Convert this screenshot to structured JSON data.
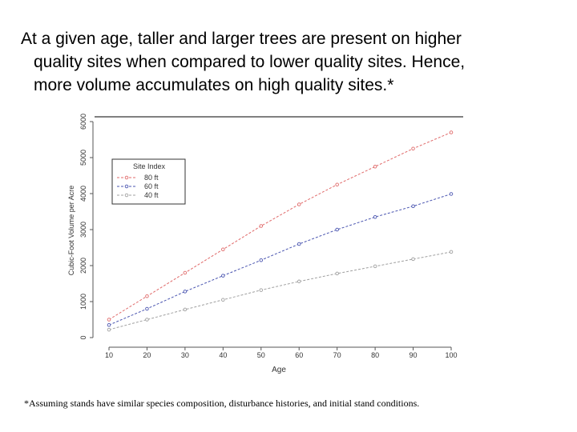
{
  "heading": {
    "line1": "At a given age, taller and larger trees are present on higher",
    "line2": "quality sites when compared to lower quality sites.  Hence,",
    "line3": "more volume accumulates on high quality sites.*"
  },
  "footnote": "*Assuming stands have similar species composition, disturbance histories, and initial stand conditions.",
  "chart_data": {
    "type": "line",
    "title": "",
    "xlabel": "Age",
    "ylabel": "Cubic-Foot Volume per Acre",
    "x": [
      10,
      20,
      30,
      40,
      50,
      60,
      70,
      80,
      90,
      100
    ],
    "xlim": [
      10,
      100
    ],
    "ylim": [
      0,
      6000
    ],
    "xticks": [
      10,
      20,
      30,
      40,
      50,
      60,
      70,
      80,
      90,
      100
    ],
    "yticks": [
      0,
      1000,
      2000,
      3000,
      4000,
      5000,
      6000
    ],
    "grid": false,
    "legend": {
      "title": "Site Index",
      "placement": "top-left"
    },
    "series": [
      {
        "name": "80 ft",
        "color": "#e06a6a",
        "values": [
          500,
          1150,
          1800,
          2450,
          3100,
          3700,
          4250,
          4750,
          5250,
          5700
        ]
      },
      {
        "name": "60 ft",
        "color": "#4a55b0",
        "values": [
          350,
          800,
          1280,
          1720,
          2150,
          2600,
          3000,
          3350,
          3650,
          3990
        ]
      },
      {
        "name": "40 ft",
        "color": "#a0a0a0",
        "values": [
          220,
          500,
          780,
          1050,
          1320,
          1560,
          1780,
          1980,
          2180,
          2380
        ]
      }
    ]
  }
}
